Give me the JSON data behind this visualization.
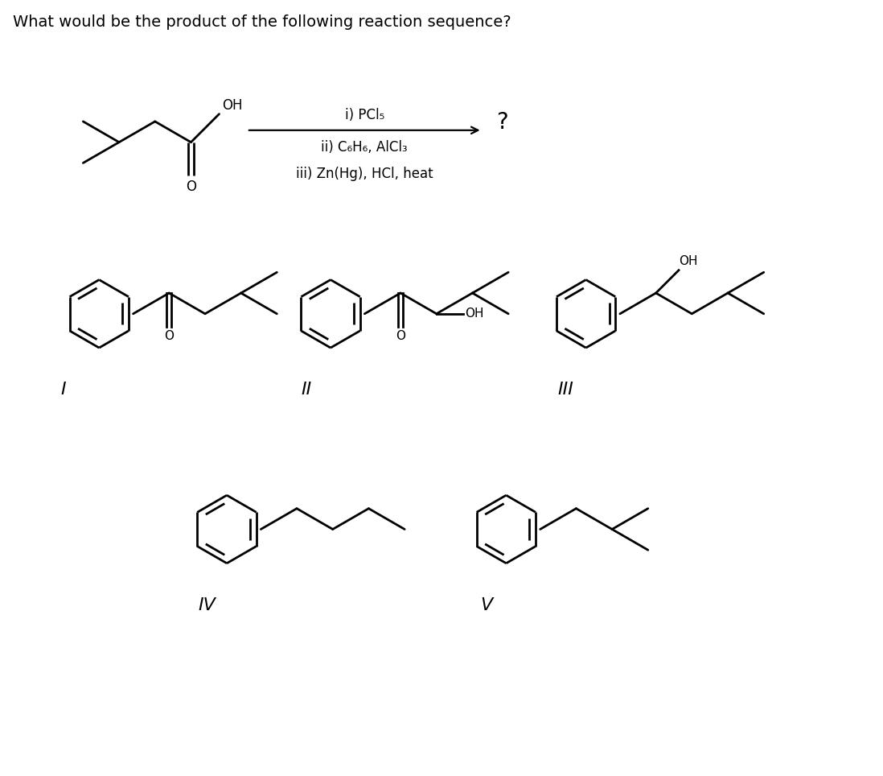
{
  "title": "What would be the product of the following reaction sequence?",
  "title_fontsize": 14,
  "bg_color": "#ffffff",
  "text_color": "#000000",
  "reagents_line1": "i) PCl₅",
  "reagents_line2": "ii) C₆H₆, AlCl₃",
  "reagents_line3": "iii) Zn(Hg), HCl, heat",
  "question_mark": "?",
  "labels": [
    "I",
    "II",
    "III",
    "IV",
    "V"
  ],
  "label_fontsize": 16,
  "bond_lw": 2.0,
  "scale": 0.52,
  "ang": 30
}
